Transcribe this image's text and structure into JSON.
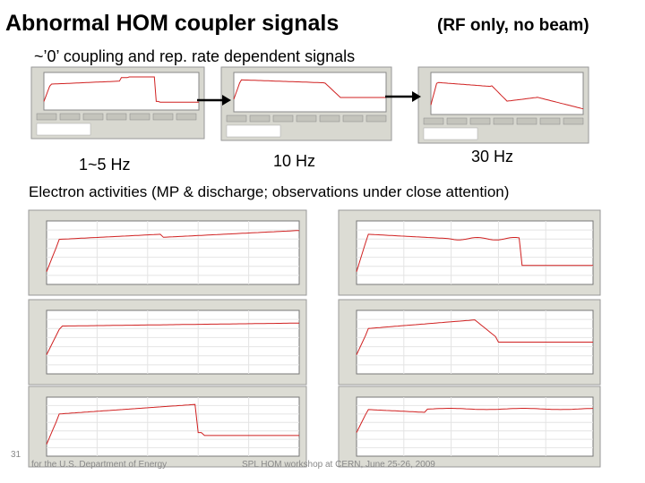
{
  "header": {
    "title": "Abnormal HOM coupler signals",
    "title_note": "(RF only, no beam)"
  },
  "subtitle": "~’0’ coupling and rep. rate dependent signals",
  "rate_labels": [
    "1~5 Hz",
    "10 Hz",
    "30 Hz"
  ],
  "section_heading": "Electron activities (MP & discharge; observations under close attention)",
  "footer": {
    "page": "31",
    "left": "for the U.S. Department of Energy",
    "center": "SPL HOM workshop at CERN, June 25-26, 2009"
  }
}
